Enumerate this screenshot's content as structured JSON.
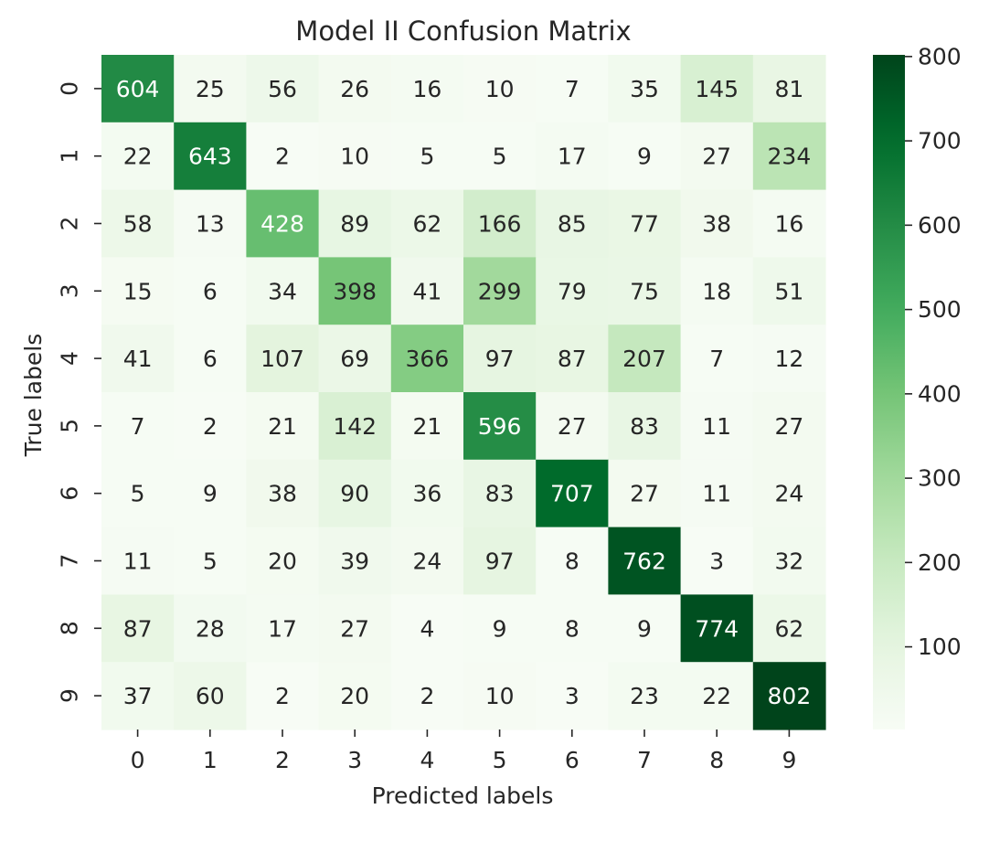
{
  "chart_data": {
    "type": "heatmap",
    "title": "Model II Confusion Matrix",
    "xlabel": "Predicted labels",
    "ylabel": "True labels",
    "x_categories": [
      "0",
      "1",
      "2",
      "3",
      "4",
      "5",
      "6",
      "7",
      "8",
      "9"
    ],
    "y_categories": [
      "0",
      "1",
      "2",
      "3",
      "4",
      "5",
      "6",
      "7",
      "8",
      "9"
    ],
    "matrix": [
      [
        604,
        25,
        56,
        26,
        16,
        10,
        7,
        35,
        145,
        81
      ],
      [
        22,
        643,
        2,
        10,
        5,
        5,
        17,
        9,
        27,
        234
      ],
      [
        58,
        13,
        428,
        89,
        62,
        166,
        85,
        77,
        38,
        16
      ],
      [
        15,
        6,
        34,
        398,
        41,
        299,
        79,
        75,
        18,
        51
      ],
      [
        41,
        6,
        107,
        69,
        366,
        97,
        87,
        207,
        7,
        12
      ],
      [
        7,
        2,
        21,
        142,
        21,
        596,
        27,
        83,
        11,
        27
      ],
      [
        5,
        9,
        38,
        90,
        36,
        83,
        707,
        27,
        11,
        24
      ],
      [
        11,
        5,
        20,
        39,
        24,
        97,
        8,
        762,
        3,
        32
      ],
      [
        87,
        28,
        17,
        27,
        4,
        9,
        8,
        9,
        774,
        62
      ],
      [
        37,
        60,
        2,
        20,
        2,
        10,
        3,
        23,
        22,
        802
      ]
    ],
    "colorbar": {
      "ticks": [
        "100",
        "200",
        "300",
        "400",
        "500",
        "600",
        "700",
        "800"
      ],
      "range": [
        2,
        802
      ],
      "colormap": "Greens"
    },
    "colors": {
      "low": "#f7fcf5",
      "high": "#00441b",
      "text_dark": "#262626",
      "text_light": "#ffffff"
    }
  }
}
